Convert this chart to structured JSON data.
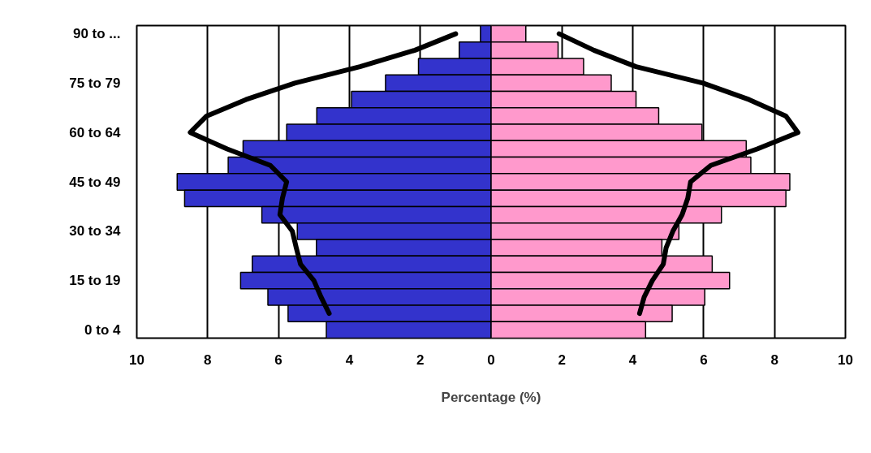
{
  "chart_data": {
    "type": "bar",
    "orientation": "horizontal",
    "stacked": true,
    "xlabel": "Percentage (%)",
    "categories": [
      "90 to ...",
      null,
      null,
      "75 to 79",
      null,
      null,
      "60 to 64",
      null,
      null,
      "45 to 49",
      null,
      null,
      "30 to 34",
      null,
      null,
      "15 to 19",
      null,
      null,
      "0 to 4"
    ],
    "series": [
      {
        "color": "#3333cc",
        "values": [
          -0.3,
          -0.9,
          -2.05,
          -2.98,
          -3.94,
          -4.92,
          -5.77,
          -7.0,
          -7.42,
          -8.86,
          -8.65,
          -6.47,
          -5.47,
          -4.93,
          -6.74,
          -7.07,
          -6.3,
          -5.73,
          -4.65
        ]
      },
      {
        "color": "#ff99cc",
        "values": [
          0.98,
          1.89,
          2.61,
          3.39,
          4.09,
          4.73,
          5.95,
          7.2,
          7.33,
          8.43,
          8.32,
          6.5,
          5.3,
          4.82,
          6.24,
          6.73,
          6.03,
          5.11,
          4.36
        ]
      },
      {
        "type": "line",
        "color": "#000000",
        "values": [
          -1.0,
          -2.15,
          -3.7,
          -5.54,
          -6.92,
          -8.03,
          -8.49,
          -7.45,
          -6.23,
          -5.77,
          -5.89,
          -5.96,
          -5.61,
          -5.5,
          -5.38,
          -5.0,
          -4.8,
          -4.57,
          null
        ]
      },
      {
        "type": "line",
        "color": "#000000",
        "values": [
          1.92,
          2.9,
          4.09,
          5.98,
          7.28,
          8.32,
          8.66,
          7.51,
          6.2,
          5.63,
          5.55,
          5.39,
          5.13,
          4.94,
          4.86,
          4.55,
          4.32,
          4.19,
          null
        ]
      }
    ],
    "xlim": [
      -10,
      10
    ],
    "xticks": [
      {
        "value": -10,
        "label": "10"
      },
      {
        "value": -8,
        "label": "8"
      },
      {
        "value": -6,
        "label": "6"
      },
      {
        "value": -4,
        "label": "4"
      },
      {
        "value": -2,
        "label": "2"
      },
      0,
      2,
      4,
      6,
      8,
      10
    ],
    "grid": "x",
    "line_style": "solid",
    "marker": "none"
  }
}
